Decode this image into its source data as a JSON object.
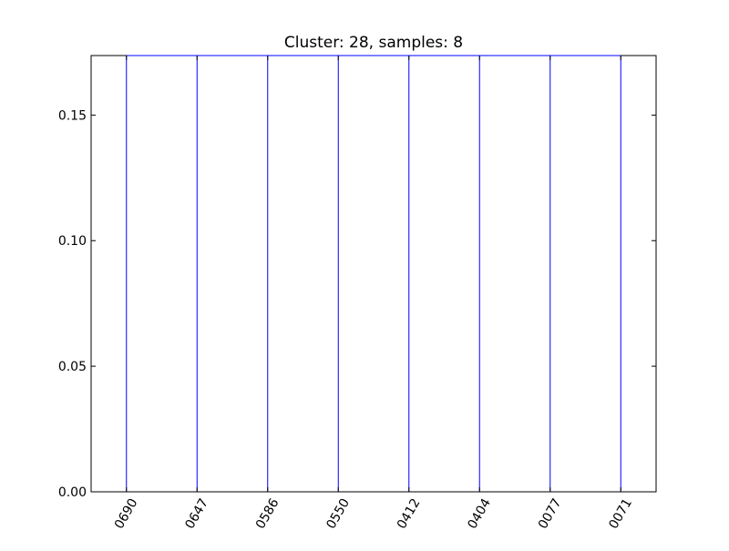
{
  "chart_data": {
    "type": "dendrogram",
    "title": "Cluster: 28, samples: 8",
    "xlabel": "",
    "ylabel": "",
    "leaves": [
      "0690",
      "0647",
      "0586",
      "0550",
      "0412",
      "0404",
      "0077",
      "0071"
    ],
    "merge_height": 0.1737,
    "ylim": [
      0.0,
      0.1737
    ],
    "yticks": [
      0.0,
      0.05,
      0.1,
      0.15
    ],
    "ytick_labels": [
      "0.00",
      "0.05",
      "0.10",
      "0.15"
    ],
    "grid": false,
    "line_color": "#0000ff"
  }
}
